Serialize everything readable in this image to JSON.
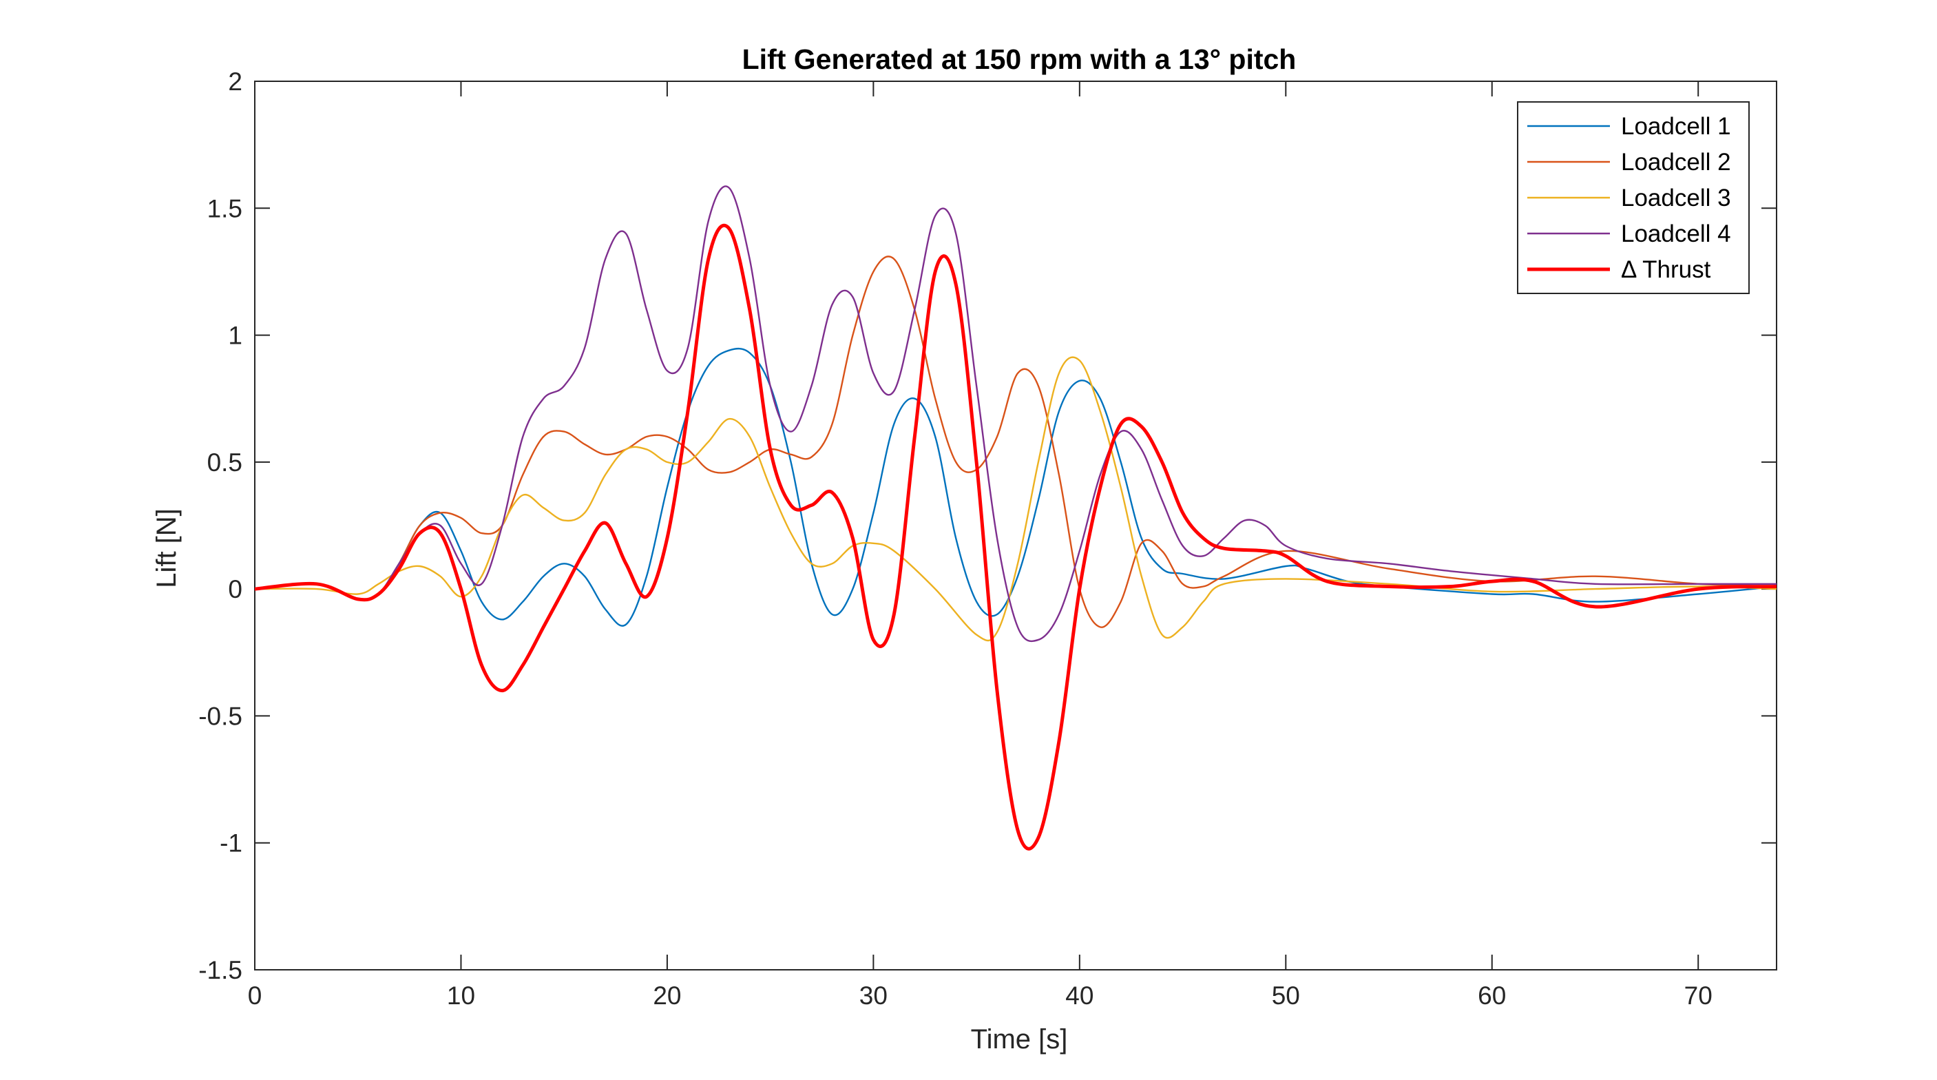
{
  "chart_data": {
    "type": "line",
    "title": "Lift Generated at 150 rpm with a 13° pitch",
    "xlabel": "Time [s]",
    "ylabel": "Lift [N]",
    "xlim": [
      0,
      73.8
    ],
    "ylim": [
      -1.5,
      2
    ],
    "xticks": [
      0,
      10,
      20,
      30,
      40,
      50,
      60,
      70
    ],
    "xtick_labels": [
      "0",
      "10",
      "20",
      "30",
      "40",
      "50",
      "60",
      "70"
    ],
    "yticks": [
      2,
      1.5,
      1,
      0.5,
      0,
      -0.5,
      -1,
      -1.5
    ],
    "ytick_labels": [
      "2",
      "1.5",
      "1",
      "0.5",
      "0",
      "-0.5",
      "-1",
      "-1.5"
    ],
    "grid": false,
    "legend_position": "top-right",
    "colors": {
      "loadcell1": "#0072BD",
      "loadcell2": "#D95319",
      "loadcell3": "#EDB120",
      "loadcell4": "#7E2F8E",
      "thrust": "#FF0000",
      "axes": "#262626"
    },
    "series": [
      {
        "name": "Loadcell 1",
        "color": "#0072BD",
        "points": [
          [
            0,
            0
          ],
          [
            3,
            0.02
          ],
          [
            5,
            -0.04
          ],
          [
            6,
            -0.02
          ],
          [
            7,
            0.1
          ],
          [
            8,
            0.25
          ],
          [
            9,
            0.3
          ],
          [
            10,
            0.15
          ],
          [
            11,
            -0.05
          ],
          [
            12,
            -0.12
          ],
          [
            13,
            -0.05
          ],
          [
            14,
            0.05
          ],
          [
            15,
            0.1
          ],
          [
            16,
            0.05
          ],
          [
            17,
            -0.08
          ],
          [
            18,
            -0.14
          ],
          [
            19,
            0.05
          ],
          [
            20,
            0.4
          ],
          [
            21,
            0.7
          ],
          [
            22,
            0.88
          ],
          [
            23,
            0.94
          ],
          [
            24,
            0.93
          ],
          [
            25,
            0.8
          ],
          [
            26,
            0.5
          ],
          [
            27,
            0.1
          ],
          [
            28,
            -0.1
          ],
          [
            29,
            0
          ],
          [
            30,
            0.3
          ],
          [
            31,
            0.65
          ],
          [
            32,
            0.75
          ],
          [
            33,
            0.6
          ],
          [
            34,
            0.2
          ],
          [
            35,
            -0.05
          ],
          [
            36,
            -0.1
          ],
          [
            37,
            0.05
          ],
          [
            38,
            0.35
          ],
          [
            39,
            0.7
          ],
          [
            40,
            0.82
          ],
          [
            41,
            0.75
          ],
          [
            42,
            0.5
          ],
          [
            43,
            0.2
          ],
          [
            44,
            0.08
          ],
          [
            45,
            0.06
          ],
          [
            47,
            0.04
          ],
          [
            50,
            0.09
          ],
          [
            51,
            0.08
          ],
          [
            53,
            0.03
          ],
          [
            55,
            0.01
          ],
          [
            60,
            -0.02
          ],
          [
            62,
            -0.02
          ],
          [
            65,
            -0.05
          ],
          [
            70,
            -0.02
          ],
          [
            73.8,
            0.01
          ]
        ]
      },
      {
        "name": "Loadcell 2",
        "color": "#D95319",
        "points": [
          [
            0,
            0
          ],
          [
            3,
            0.02
          ],
          [
            5,
            -0.04
          ],
          [
            6,
            -0.02
          ],
          [
            7,
            0.1
          ],
          [
            8,
            0.25
          ],
          [
            9,
            0.3
          ],
          [
            10,
            0.28
          ],
          [
            11,
            0.22
          ],
          [
            12,
            0.25
          ],
          [
            13,
            0.45
          ],
          [
            14,
            0.6
          ],
          [
            15,
            0.62
          ],
          [
            16,
            0.57
          ],
          [
            17,
            0.53
          ],
          [
            18,
            0.55
          ],
          [
            19,
            0.6
          ],
          [
            20,
            0.6
          ],
          [
            21,
            0.55
          ],
          [
            22,
            0.47
          ],
          [
            23,
            0.46
          ],
          [
            24,
            0.5
          ],
          [
            25,
            0.55
          ],
          [
            26,
            0.53
          ],
          [
            27,
            0.52
          ],
          [
            28,
            0.65
          ],
          [
            29,
            1
          ],
          [
            30,
            1.25
          ],
          [
            31,
            1.3
          ],
          [
            32,
            1.1
          ],
          [
            33,
            0.75
          ],
          [
            34,
            0.5
          ],
          [
            35,
            0.47
          ],
          [
            36,
            0.6
          ],
          [
            37,
            0.85
          ],
          [
            38,
            0.8
          ],
          [
            39,
            0.45
          ],
          [
            40,
            0
          ],
          [
            41,
            -0.15
          ],
          [
            42,
            -0.05
          ],
          [
            43,
            0.18
          ],
          [
            44,
            0.15
          ],
          [
            45,
            0.02
          ],
          [
            46,
            0.01
          ],
          [
            47,
            0.05
          ],
          [
            50,
            0.15
          ],
          [
            55,
            0.08
          ],
          [
            60,
            0.03
          ],
          [
            65,
            0.05
          ],
          [
            70,
            0.02
          ],
          [
            73.8,
            0.01
          ]
        ]
      },
      {
        "name": "Loadcell 3",
        "color": "#EDB120",
        "points": [
          [
            0,
            0
          ],
          [
            3,
            0
          ],
          [
            5,
            -0.02
          ],
          [
            6,
            0.02
          ],
          [
            7,
            0.07
          ],
          [
            8,
            0.09
          ],
          [
            9,
            0.05
          ],
          [
            10,
            -0.03
          ],
          [
            11,
            0.05
          ],
          [
            12,
            0.25
          ],
          [
            13,
            0.37
          ],
          [
            14,
            0.32
          ],
          [
            15,
            0.27
          ],
          [
            16,
            0.3
          ],
          [
            17,
            0.45
          ],
          [
            18,
            0.55
          ],
          [
            19,
            0.55
          ],
          [
            20,
            0.5
          ],
          [
            21,
            0.5
          ],
          [
            22,
            0.58
          ],
          [
            23,
            0.67
          ],
          [
            24,
            0.6
          ],
          [
            25,
            0.4
          ],
          [
            26,
            0.22
          ],
          [
            27,
            0.1
          ],
          [
            28,
            0.1
          ],
          [
            29,
            0.17
          ],
          [
            30,
            0.18
          ],
          [
            31,
            0.15
          ],
          [
            33,
            0
          ],
          [
            35,
            -0.18
          ],
          [
            36,
            -0.17
          ],
          [
            37,
            0.1
          ],
          [
            38,
            0.5
          ],
          [
            39,
            0.85
          ],
          [
            40,
            0.9
          ],
          [
            41,
            0.7
          ],
          [
            42,
            0.4
          ],
          [
            43,
            0.05
          ],
          [
            44,
            -0.18
          ],
          [
            45,
            -0.15
          ],
          [
            46,
            -0.05
          ],
          [
            47,
            0.02
          ],
          [
            50,
            0.04
          ],
          [
            55,
            0.02
          ],
          [
            60,
            -0.01
          ],
          [
            65,
            0
          ],
          [
            70,
            0.01
          ],
          [
            73.8,
            0
          ]
        ]
      },
      {
        "name": "Loadcell 4",
        "color": "#7E2F8E",
        "points": [
          [
            0,
            0
          ],
          [
            3,
            0.02
          ],
          [
            5,
            -0.04
          ],
          [
            6,
            -0.02
          ],
          [
            7,
            0.1
          ],
          [
            8,
            0.22
          ],
          [
            9,
            0.25
          ],
          [
            10,
            0.1
          ],
          [
            11,
            0.02
          ],
          [
            12,
            0.25
          ],
          [
            13,
            0.6
          ],
          [
            14,
            0.75
          ],
          [
            15,
            0.8
          ],
          [
            16,
            0.95
          ],
          [
            17,
            1.3
          ],
          [
            18,
            1.4
          ],
          [
            19,
            1.1
          ],
          [
            20,
            0.86
          ],
          [
            21,
            0.95
          ],
          [
            22,
            1.45
          ],
          [
            23,
            1.58
          ],
          [
            24,
            1.3
          ],
          [
            25,
            0.8
          ],
          [
            26,
            0.62
          ],
          [
            27,
            0.8
          ],
          [
            28,
            1.12
          ],
          [
            29,
            1.15
          ],
          [
            30,
            0.85
          ],
          [
            31,
            0.78
          ],
          [
            32,
            1.1
          ],
          [
            33,
            1.47
          ],
          [
            34,
            1.4
          ],
          [
            35,
            0.8
          ],
          [
            36,
            0.2
          ],
          [
            37,
            -0.15
          ],
          [
            38,
            -0.2
          ],
          [
            39,
            -0.1
          ],
          [
            40,
            0.15
          ],
          [
            41,
            0.45
          ],
          [
            42,
            0.62
          ],
          [
            43,
            0.55
          ],
          [
            44,
            0.35
          ],
          [
            45,
            0.17
          ],
          [
            46,
            0.13
          ],
          [
            47,
            0.2
          ],
          [
            48,
            0.27
          ],
          [
            49,
            0.25
          ],
          [
            50,
            0.17
          ],
          [
            52,
            0.12
          ],
          [
            55,
            0.1
          ],
          [
            58,
            0.07
          ],
          [
            62,
            0.04
          ],
          [
            65,
            0.02
          ],
          [
            70,
            0.02
          ],
          [
            73.8,
            0.02
          ]
        ]
      },
      {
        "name": "Δ Thrust",
        "color": "#FF0000",
        "width": "thick",
        "points": [
          [
            0,
            0
          ],
          [
            3,
            0.02
          ],
          [
            5,
            -0.04
          ],
          [
            6,
            -0.02
          ],
          [
            7,
            0.08
          ],
          [
            8,
            0.22
          ],
          [
            9,
            0.22
          ],
          [
            10,
            0
          ],
          [
            11,
            -0.3
          ],
          [
            12,
            -0.4
          ],
          [
            13,
            -0.3
          ],
          [
            14,
            -0.15
          ],
          [
            15,
            0
          ],
          [
            16,
            0.15
          ],
          [
            17,
            0.26
          ],
          [
            18,
            0.1
          ],
          [
            19,
            -0.03
          ],
          [
            20,
            0.2
          ],
          [
            21,
            0.7
          ],
          [
            22,
            1.3
          ],
          [
            23,
            1.42
          ],
          [
            24,
            1.1
          ],
          [
            25,
            0.55
          ],
          [
            26,
            0.33
          ],
          [
            27,
            0.33
          ],
          [
            28,
            0.38
          ],
          [
            29,
            0.2
          ],
          [
            30,
            -0.2
          ],
          [
            31,
            -0.1
          ],
          [
            32,
            0.6
          ],
          [
            33,
            1.25
          ],
          [
            34,
            1.2
          ],
          [
            35,
            0.5
          ],
          [
            36,
            -0.4
          ],
          [
            37,
            -0.95
          ],
          [
            38,
            -0.98
          ],
          [
            39,
            -0.6
          ],
          [
            40,
            0
          ],
          [
            41,
            0.4
          ],
          [
            42,
            0.65
          ],
          [
            43,
            0.64
          ],
          [
            44,
            0.5
          ],
          [
            45,
            0.3
          ],
          [
            46,
            0.2
          ],
          [
            47,
            0.16
          ],
          [
            49,
            0.15
          ],
          [
            50,
            0.13
          ],
          [
            52,
            0.03
          ],
          [
            55,
            0.01
          ],
          [
            58,
            0.01
          ],
          [
            60,
            0.03
          ],
          [
            62,
            0.03
          ],
          [
            65,
            -0.07
          ],
          [
            70,
            0
          ],
          [
            73.8,
            0.01
          ]
        ]
      }
    ]
  }
}
